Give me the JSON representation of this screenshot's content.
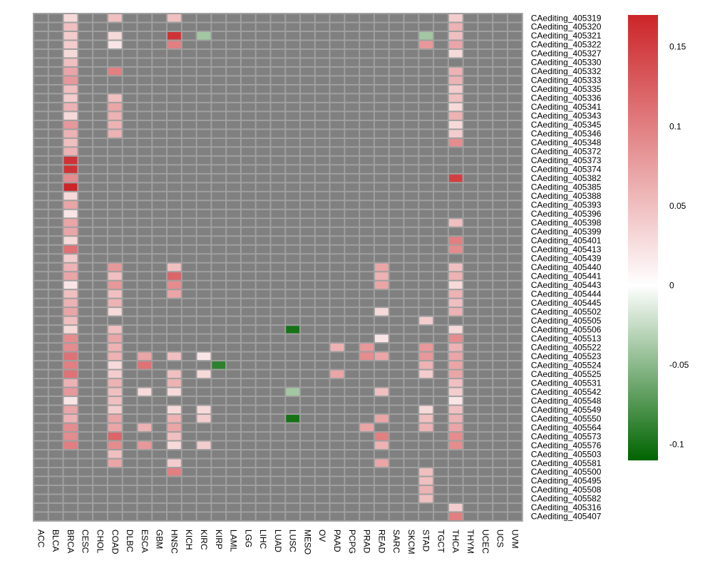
{
  "chart_data": {
    "type": "heatmap",
    "title": "",
    "na_color": "#808080",
    "grid_color": "#a0a0a0",
    "columns": [
      "ACC",
      "BLCA",
      "BRCA",
      "CESC",
      "CHOL",
      "COAD",
      "DLBC",
      "ESCA",
      "GBM",
      "HNSC",
      "KICH",
      "KIRC",
      "KIRP",
      "LAML",
      "LGG",
      "LIHC",
      "LUAD",
      "LUSC",
      "MESO",
      "OV",
      "PAAD",
      "PCPG",
      "PRAD",
      "READ",
      "SARC",
      "SKCM",
      "STAD",
      "TGCT",
      "THCA",
      "THYM",
      "UCEC",
      "UCS",
      "UVM"
    ],
    "rows": [
      {
        "name": "CAediting_405319",
        "cells": {
          "BRCA": 0.03,
          "COAD": 0.05,
          "HNSC": 0.05,
          "THCA": 0.04
        }
      },
      {
        "name": "CAediting_405320",
        "cells": {
          "BRCA": 0.05,
          "THCA": 0.06
        }
      },
      {
        "name": "CAediting_405321",
        "cells": {
          "BRCA": 0.04,
          "COAD": 0.03,
          "HNSC": 0.16,
          "KIRC": -0.04,
          "STAD": -0.04,
          "THCA": 0.05
        }
      },
      {
        "name": "CAediting_405322",
        "cells": {
          "BRCA": 0.04,
          "COAD": 0.02,
          "HNSC": 0.1,
          "STAD": 0.08,
          "THCA": 0.07
        }
      },
      {
        "name": "CAediting_405327",
        "cells": {
          "BRCA": 0.03,
          "THCA": 0.03
        }
      },
      {
        "name": "CAediting_405330",
        "cells": {
          "BRCA": 0.05
        }
      },
      {
        "name": "CAediting_405332",
        "cells": {
          "BRCA": 0.07,
          "COAD": 0.1,
          "THCA": 0.06
        }
      },
      {
        "name": "CAediting_405333",
        "cells": {
          "BRCA": 0.08,
          "THCA": 0.06
        }
      },
      {
        "name": "CAediting_405335",
        "cells": {
          "BRCA": 0.05,
          "THCA": 0.04
        }
      },
      {
        "name": "CAediting_405336",
        "cells": {
          "BRCA": 0.04,
          "COAD": 0.05,
          "THCA": 0.05
        }
      },
      {
        "name": "CAediting_405341",
        "cells": {
          "BRCA": 0.06,
          "COAD": 0.07,
          "THCA": 0.03
        }
      },
      {
        "name": "CAediting_405343",
        "cells": {
          "BRCA": 0.03,
          "COAD": 0.06,
          "THCA": 0.06
        }
      },
      {
        "name": "CAediting_405345",
        "cells": {
          "BRCA": 0.08,
          "COAD": 0.06,
          "THCA": 0.03
        }
      },
      {
        "name": "CAediting_405346",
        "cells": {
          "BRCA": 0.06,
          "COAD": 0.06,
          "THCA": 0.04
        }
      },
      {
        "name": "CAediting_405348",
        "cells": {
          "BRCA": 0.05,
          "THCA": 0.09
        }
      },
      {
        "name": "CAediting_405372",
        "cells": {
          "BRCA": 0.06
        }
      },
      {
        "name": "CAediting_405373",
        "cells": {
          "BRCA": 0.16
        }
      },
      {
        "name": "CAediting_405374",
        "cells": {
          "BRCA": 0.16
        }
      },
      {
        "name": "CAediting_405382",
        "cells": {
          "BRCA": 0.09,
          "THCA": 0.15
        }
      },
      {
        "name": "CAediting_405385",
        "cells": {
          "BRCA": 0.17
        }
      },
      {
        "name": "CAediting_405388",
        "cells": {
          "BRCA": 0.03
        }
      },
      {
        "name": "CAediting_405393",
        "cells": {
          "BRCA": 0.07
        }
      },
      {
        "name": "CAediting_405396",
        "cells": {
          "BRCA": 0.02
        }
      },
      {
        "name": "CAediting_405398",
        "cells": {
          "BRCA": 0.07,
          "THCA": 0.05
        }
      },
      {
        "name": "CAediting_405399",
        "cells": {
          "BRCA": 0.07
        }
      },
      {
        "name": "CAediting_405401",
        "cells": {
          "BRCA": 0.03,
          "THCA": 0.1
        }
      },
      {
        "name": "CAediting_405413",
        "cells": {
          "BRCA": 0.11,
          "THCA": 0.09
        }
      },
      {
        "name": "CAediting_405439",
        "cells": {
          "BRCA": 0.04
        }
      },
      {
        "name": "CAediting_405440",
        "cells": {
          "BRCA": 0.06,
          "COAD": 0.08,
          "HNSC": 0.05,
          "READ": 0.07,
          "THCA": 0.05
        }
      },
      {
        "name": "CAediting_405441",
        "cells": {
          "BRCA": 0.07,
          "COAD": 0.05,
          "HNSC": 0.12,
          "READ": 0.06,
          "THCA": 0.06
        }
      },
      {
        "name": "CAediting_405443",
        "cells": {
          "BRCA": 0.02,
          "COAD": 0.08,
          "HNSC": 0.09,
          "READ": 0.07,
          "THCA": 0.03
        }
      },
      {
        "name": "CAediting_405444",
        "cells": {
          "BRCA": 0.05,
          "COAD": 0.05,
          "HNSC": 0.07,
          "THCA": 0.06
        }
      },
      {
        "name": "CAediting_405445",
        "cells": {
          "BRCA": 0.06,
          "COAD": 0.06,
          "THCA": 0.05
        }
      },
      {
        "name": "CAediting_405502",
        "cells": {
          "BRCA": 0.07,
          "COAD": 0.03,
          "READ": 0.03,
          "THCA": 0.06
        }
      },
      {
        "name": "CAediting_405505",
        "cells": {
          "BRCA": 0.05,
          "STAD": 0.04
        }
      },
      {
        "name": "CAediting_405506",
        "cells": {
          "BRCA": 0.03,
          "COAD": 0.05,
          "LUSC": -0.1,
          "THCA": 0.03
        }
      },
      {
        "name": "CAediting_405513",
        "cells": {
          "BRCA": 0.09,
          "COAD": 0.07,
          "READ": 0.02,
          "THCA": 0.09
        }
      },
      {
        "name": "CAediting_405522",
        "cells": {
          "BRCA": 0.09,
          "COAD": 0.06,
          "PAAD": 0.06,
          "PRAD": 0.08,
          "STAD": 0.08,
          "THCA": 0.06
        }
      },
      {
        "name": "CAediting_405523",
        "cells": {
          "BRCA": 0.11,
          "COAD": 0.06,
          "ESCA": 0.07,
          "HNSC": 0.05,
          "KIRC": 0.02,
          "PRAD": 0.09,
          "READ": 0.07,
          "STAD": 0.08,
          "THCA": 0.07
        }
      },
      {
        "name": "CAediting_405524",
        "cells": {
          "BRCA": 0.1,
          "COAD": 0.03,
          "ESCA": 0.11,
          "KIRP": -0.09,
          "STAD": 0.06,
          "THCA": 0.07
        }
      },
      {
        "name": "CAediting_405525",
        "cells": {
          "BRCA": 0.11,
          "COAD": 0.04,
          "HNSC": 0.05,
          "KIRC": 0.03,
          "PAAD": 0.07,
          "STAD": 0.04,
          "THCA": 0.07
        }
      },
      {
        "name": "CAediting_405531",
        "cells": {
          "BRCA": 0.06,
          "COAD": 0.06,
          "HNSC": 0.06,
          "THCA": 0.05
        }
      },
      {
        "name": "CAediting_405542",
        "cells": {
          "BRCA": 0.08,
          "COAD": 0.05,
          "ESCA": 0.03,
          "HNSC": 0.03,
          "LUSC": -0.04,
          "READ": 0.05,
          "THCA": 0.04
        }
      },
      {
        "name": "CAediting_405548",
        "cells": {
          "BRCA": 0.02,
          "COAD": 0.05,
          "THCA": 0.02
        }
      },
      {
        "name": "CAediting_405549",
        "cells": {
          "BRCA": 0.07,
          "COAD": 0.04,
          "HNSC": 0.03,
          "KIRC": 0.03,
          "STAD": 0.03,
          "THCA": 0.05
        }
      },
      {
        "name": "CAediting_405550",
        "cells": {
          "BRCA": 0.06,
          "COAD": 0.07,
          "HNSC": 0.06,
          "KIRC": 0.04,
          "LUSC": -0.1,
          "READ": 0.07,
          "STAD": 0.05,
          "THCA": 0.06
        }
      },
      {
        "name": "CAediting_405564",
        "cells": {
          "BRCA": 0.09,
          "COAD": 0.07,
          "ESCA": 0.06,
          "HNSC": 0.07,
          "PRAD": 0.07,
          "STAD": 0.06,
          "THCA": 0.07
        }
      },
      {
        "name": "CAediting_405573",
        "cells": {
          "BRCA": 0.09,
          "COAD": 0.12,
          "HNSC": 0.05,
          "READ": 0.1,
          "THCA": 0.09
        }
      },
      {
        "name": "CAediting_405576",
        "cells": {
          "BRCA": 0.1,
          "COAD": 0.09,
          "ESCA": 0.08,
          "HNSC": 0.03,
          "KIRC": 0.04,
          "READ": 0.06,
          "THCA": 0.09
        }
      },
      {
        "name": "CAediting_405503",
        "cells": {
          "COAD": 0.05
        }
      },
      {
        "name": "CAediting_405581",
        "cells": {
          "COAD": 0.07,
          "HNSC": 0.04,
          "READ": 0.07
        }
      },
      {
        "name": "CAediting_405500",
        "cells": {
          "HNSC": 0.1,
          "STAD": 0.05
        }
      },
      {
        "name": "CAediting_405495",
        "cells": {
          "STAD": 0.05
        }
      },
      {
        "name": "CAediting_405508",
        "cells": {
          "STAD": 0.06
        }
      },
      {
        "name": "CAediting_405582",
        "cells": {
          "STAD": 0.05
        }
      },
      {
        "name": "CAediting_405316",
        "cells": {
          "THCA": 0.04
        }
      },
      {
        "name": "CAediting_405407",
        "cells": {
          "THCA": 0.1
        }
      }
    ],
    "color_scale": {
      "min": -0.11,
      "max": 0.17,
      "stops": [
        {
          "value": -0.11,
          "color": "#006400"
        },
        {
          "value": 0,
          "color": "#ffffff"
        },
        {
          "value": 0.17,
          "color": "#cc2529"
        }
      ],
      "tick_values": [
        0.15,
        0.1,
        0.05,
        0,
        -0.05,
        -0.1
      ],
      "tick_labels": [
        "0.15",
        "0.1",
        "0.05",
        "0",
        "-0.05",
        "-0.1"
      ],
      "legend_position": "right"
    }
  }
}
